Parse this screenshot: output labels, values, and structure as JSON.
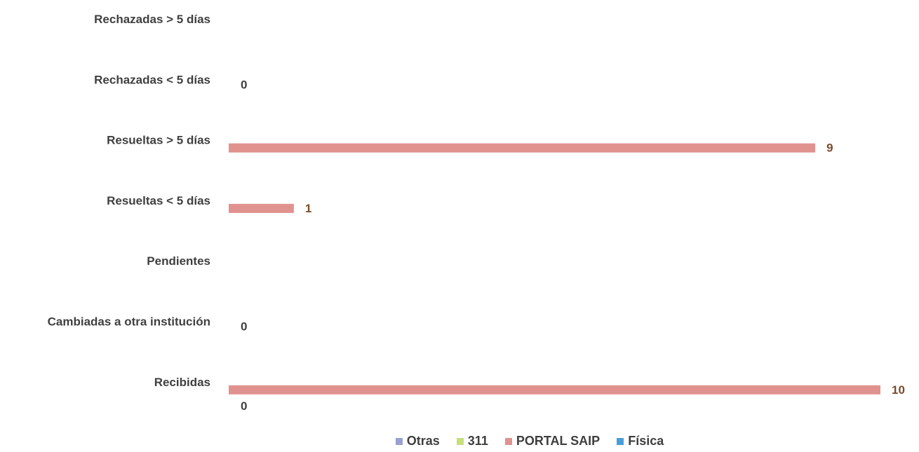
{
  "chart_data": {
    "type": "bar",
    "orientation": "horizontal",
    "categories": [
      "Rechazadas  > 5 días",
      "Rechazadas  < 5 días",
      "Resueltas > 5 días",
      "Resueltas < 5 días",
      "Pendientes",
      "Cambiadas a otra institución",
      "Recibidas"
    ],
    "series": [
      {
        "name": "Otras",
        "color": "#9aa0d0",
        "values": [
          null,
          null,
          null,
          null,
          null,
          null,
          null
        ]
      },
      {
        "name": "311",
        "color": "#c5df7a",
        "values": [
          null,
          null,
          null,
          null,
          null,
          null,
          null
        ]
      },
      {
        "name": "PORTAL SAIP",
        "color": "#e0928e",
        "values": [
          null,
          null,
          9,
          1,
          null,
          null,
          10
        ]
      },
      {
        "name": "Física",
        "color": "#4a9fd8",
        "values": [
          null,
          null,
          null,
          null,
          null,
          null,
          null
        ]
      }
    ],
    "extra_labels": [
      {
        "category": "Rechazadas  < 5 días",
        "text": "0"
      },
      {
        "category": "Cambiadas a otra institución",
        "text": "0"
      },
      {
        "category": "Recibidas",
        "text": "0",
        "position": "below"
      }
    ],
    "xlim": [
      0,
      10
    ],
    "grid": false,
    "legend_position": "bottom",
    "title": "",
    "xlabel": "",
    "ylabel": ""
  }
}
